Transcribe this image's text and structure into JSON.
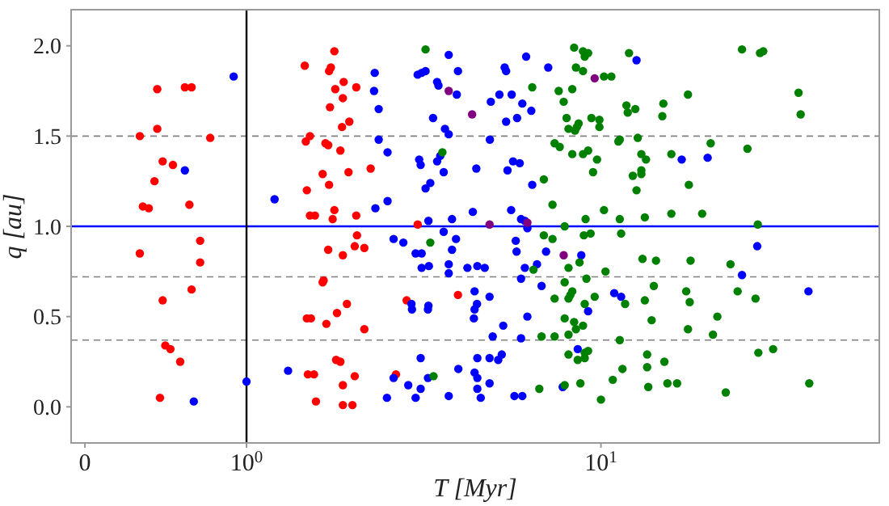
{
  "chart_data": {
    "type": "scatter",
    "xlabel": "T [Myr]",
    "ylabel": "q [au]",
    "log": "x",
    "marker": "circle",
    "grid": false,
    "xlim": [
      0.32,
      61
    ],
    "ylim": [
      -0.2,
      2.2
    ],
    "xticks": [
      {
        "value": 0.35,
        "label": "0"
      },
      {
        "value": 1,
        "label": "10$^{0}$"
      },
      {
        "value": 10,
        "label": "10$^{1}$"
      }
    ],
    "yticks": [
      {
        "value": 0,
        "label": "0.0"
      },
      {
        "value": 0.5,
        "label": "0.5"
      },
      {
        "value": 1,
        "label": "1.0"
      },
      {
        "value": 1.5,
        "label": "1.5"
      },
      {
        "value": 2,
        "label": "2.0"
      }
    ],
    "ref_lines": [
      {
        "axis": "y",
        "value": 1.5,
        "color": "#808080",
        "line_style": "dashed"
      },
      {
        "axis": "y",
        "value": 0.72,
        "color": "#808080",
        "line_style": "dashed"
      },
      {
        "axis": "y",
        "value": 0.37,
        "color": "#808080",
        "line_style": "dashed"
      },
      {
        "axis": "y",
        "value": 1.0,
        "color": "#0000ff",
        "line_style": "solid"
      },
      {
        "axis": "x",
        "value": 1,
        "color": "#000000",
        "line_style": "solid"
      }
    ],
    "series": [
      {
        "color": "#ff0000",
        "x": [
          0.56,
          0.67,
          0.7,
          0.56,
          0.5,
          0.79,
          0.58,
          0.62,
          0.55,
          0.51,
          0.53,
          0.69,
          0.74,
          0.5,
          0.74,
          0.7,
          0.58,
          0.59,
          0.61,
          0.65,
          0.57,
          1.77,
          1.46,
          1.71,
          1.73,
          1.88,
          1.78,
          2.04,
          1.87,
          1.72,
          1.95,
          1.86,
          1.51,
          1.47,
          1.67,
          1.7,
          1.84,
          1.64,
          1.94,
          2.24,
          1.71,
          1.48,
          1.51,
          1.56,
          1.77,
          1.75,
          2.04,
          3.04,
          2.05,
          1.7,
          2.02,
          2.15,
          1.87,
          1.65,
          1.64,
          2.83,
          1.48,
          1.52,
          1.92,
          1.8,
          1.68,
          2.15,
          1.79,
          1.84,
          1.49,
          1.55,
          2.02,
          1.87,
          1.57,
          1.87,
          1.99,
          2.64,
          3.95
        ],
        "values": [
          1.76,
          1.77,
          1.77,
          1.54,
          1.5,
          1.49,
          1.36,
          1.34,
          1.25,
          1.11,
          1.1,
          1.12,
          0.92,
          0.85,
          0.8,
          0.65,
          0.59,
          0.34,
          0.32,
          0.25,
          0.05,
          1.97,
          1.89,
          1.86,
          1.88,
          1.8,
          1.76,
          1.77,
          1.71,
          1.66,
          1.58,
          1.55,
          1.5,
          1.47,
          1.46,
          1.45,
          1.42,
          1.29,
          1.3,
          1.32,
          1.23,
          1.2,
          1.06,
          1.06,
          1.09,
          1.04,
          1.06,
          1.01,
          0.95,
          0.87,
          0.89,
          0.88,
          0.84,
          0.7,
          0.69,
          0.59,
          0.49,
          0.49,
          0.57,
          0.52,
          0.46,
          0.43,
          0.26,
          0.25,
          0.18,
          0.18,
          0.17,
          0.12,
          0.03,
          0.01,
          0.01,
          0.18,
          0.62
        ]
      },
      {
        "color": "#0000ff",
        "x": [
          0.92,
          0.67,
          1.2,
          1.31,
          1.0,
          0.71,
          2.3,
          2.29,
          2.36,
          2.36,
          2.5,
          3.04,
          3.12,
          3.2,
          3.72,
          3.45,
          3.48,
          3.95,
          3.92,
          3.36,
          3.63,
          3.72,
          3.07,
          3.1,
          3.52,
          3.45,
          3.6,
          3.3,
          3.2,
          2.5,
          2.31,
          3.26,
          3.8,
          3.6,
          3.9,
          2.6,
          2.77,
          3.0,
          3.12,
          3.8,
          3.12,
          3.27,
          3.72,
          3.72,
          4.2,
          2.92,
          2.93,
          3.26,
          3.25,
          3.1,
          3.25,
          2.6,
          2.86,
          3.1,
          3.0,
          2.49,
          3.72,
          3.96,
          6.15,
          5.35,
          5.4,
          4.89,
          5.17,
          5.6,
          6.0,
          6.36,
          5.8,
          5.4,
          7.1,
          4.86,
          4.45,
          5.65,
          5.9,
          5.45,
          6.4,
          5.58,
          5.95,
          6.1,
          6.2,
          4.35,
          5.75,
          5.78,
          7.0,
          8.8,
          6.6,
          6.1,
          4.48,
          4.7,
          5.95,
          6.8,
          4.4,
          4.85,
          4.47,
          4.4,
          4.38,
          6.2,
          9.2,
          5.3,
          4.95,
          5.95,
          8.6,
          5.25,
          5.13,
          4.85,
          4.48,
          4.4,
          4.48,
          4.85,
          4.48,
          4.58,
          5.7,
          6.0,
          7.8,
          12.6,
          16.9,
          20.0,
          27.6,
          25.0,
          38.5,
          10.9,
          11.4
        ],
        "values": [
          1.83,
          1.31,
          1.15,
          0.2,
          0.14,
          0.03,
          1.85,
          1.75,
          1.65,
          1.48,
          1.41,
          1.84,
          1.85,
          1.86,
          1.95,
          1.8,
          1.78,
          1.86,
          1.73,
          1.6,
          1.54,
          1.51,
          1.37,
          1.34,
          1.39,
          1.36,
          1.3,
          1.24,
          1.21,
          1.14,
          1.1,
          1.03,
          1.04,
          0.97,
          0.93,
          0.93,
          0.91,
          0.85,
          0.85,
          0.87,
          0.77,
          0.78,
          0.79,
          0.74,
          0.77,
          0.57,
          0.54,
          0.56,
          0.54,
          0.27,
          0.16,
          0.16,
          0.12,
          0.1,
          0.05,
          0.05,
          0.06,
          0.21,
          1.94,
          1.88,
          1.86,
          1.69,
          1.73,
          1.73,
          1.68,
          1.64,
          1.6,
          1.58,
          1.88,
          1.48,
          1.32,
          1.36,
          1.35,
          1.31,
          1.23,
          1.09,
          1.04,
          1.03,
          0.99,
          1.08,
          0.92,
          0.86,
          0.86,
          0.84,
          0.79,
          0.77,
          0.78,
          0.77,
          0.71,
          0.67,
          0.64,
          0.61,
          0.57,
          0.54,
          0.49,
          0.5,
          0.53,
          0.45,
          0.39,
          0.38,
          0.32,
          0.29,
          0.26,
          0.27,
          0.27,
          0.19,
          0.16,
          0.13,
          0.1,
          0.05,
          0.06,
          0.06,
          0.11,
          1.92,
          1.37,
          1.38,
          0.89,
          0.73,
          0.64,
          0.63,
          0.61
        ]
      },
      {
        "color": "#008000",
        "x": [
          3.2,
          3.57,
          3.3,
          3.37,
          8.4,
          8.9,
          9.2,
          9.0,
          8.5,
          8.9,
          10.2,
          10.7,
          6.4,
          7.6,
          8.3,
          7.85,
          8.0,
          8.65,
          8.55,
          8.1,
          8.45,
          9.4,
          9.9,
          9.9,
          7.4,
          7.65,
          8.3,
          8.9,
          9.2,
          9.75,
          9.5,
          6.9,
          7.3,
          10.2,
          9.05,
          7.9,
          6.9,
          7.3,
          8.95,
          9.35,
          8.7,
          8.1,
          6.45,
          10.3,
          9.1,
          7.9,
          8.3,
          8.2,
          8.1,
          7.4,
          9.0,
          9.6,
          7.9,
          8.4,
          8.9,
          8.5,
          8.1,
          7.4,
          6.8,
          8.1,
          8.6,
          9.0,
          9.0,
          9.2,
          7.9,
          8.75,
          6.7,
          10.0,
          10.8,
          12.0,
          25.0,
          28.1,
          28.7,
          17.6,
          36.1,
          36.6,
          15.0,
          14.9,
          11.8,
          11.9,
          12.5,
          11.2,
          11.3,
          12.7,
          20.4,
          25.9,
          13.0,
          13.4,
          15.8,
          12.3,
          13.0,
          13.0,
          12.6,
          17.7,
          11.3,
          13.3,
          15.8,
          19.3,
          27.7,
          11.4,
          13.1,
          14.3,
          17.9,
          23.2,
          14.1,
          17.4,
          17.8,
          13.3,
          11.7,
          24.3,
          27.3,
          13.9,
          21.3,
          17.6,
          20.7,
          11.3,
          13.5,
          15.1,
          13.5,
          11.5,
          27.8,
          30.6,
          13.6,
          15.4,
          16.4,
          22.5,
          38.7
        ],
        "values": [
          1.98,
          1.41,
          0.91,
          0.17,
          1.99,
          1.97,
          1.96,
          1.94,
          1.88,
          1.86,
          1.83,
          1.83,
          1.77,
          1.75,
          1.76,
          1.69,
          1.6,
          1.57,
          1.55,
          1.54,
          1.53,
          1.6,
          1.59,
          1.55,
          1.46,
          1.44,
          1.4,
          1.4,
          1.42,
          1.37,
          1.3,
          1.26,
          1.12,
          1.09,
          1.04,
          1.0,
          0.95,
          0.93,
          0.95,
          0.96,
          0.8,
          0.77,
          0.76,
          0.75,
          0.71,
          0.69,
          0.64,
          0.62,
          0.6,
          0.6,
          0.57,
          0.61,
          0.49,
          0.47,
          0.45,
          0.43,
          0.4,
          0.39,
          0.39,
          0.29,
          0.26,
          0.27,
          0.3,
          0.31,
          0.12,
          0.13,
          0.1,
          0.04,
          0.15,
          1.96,
          1.98,
          1.96,
          1.97,
          1.73,
          1.74,
          1.62,
          1.68,
          1.61,
          1.67,
          1.63,
          1.65,
          1.47,
          1.48,
          1.49,
          1.46,
          1.43,
          1.4,
          1.37,
          1.4,
          1.28,
          1.31,
          1.29,
          1.2,
          1.23,
          1.04,
          1.05,
          1.07,
          1.07,
          1.01,
          0.96,
          0.82,
          0.81,
          0.81,
          0.79,
          0.67,
          0.64,
          0.58,
          0.59,
          0.57,
          0.64,
          0.6,
          0.48,
          0.5,
          0.43,
          0.4,
          0.37,
          0.29,
          0.25,
          0.22,
          0.21,
          0.3,
          0.32,
          0.11,
          0.13,
          0.13,
          0.08,
          0.13
        ]
      },
      {
        "color": "#800080",
        "x": [
          3.72,
          4.33,
          9.6,
          4.85,
          6.2,
          7.85
        ],
        "values": [
          1.75,
          1.62,
          1.82,
          1.01,
          1.02,
          0.84
        ]
      }
    ]
  }
}
